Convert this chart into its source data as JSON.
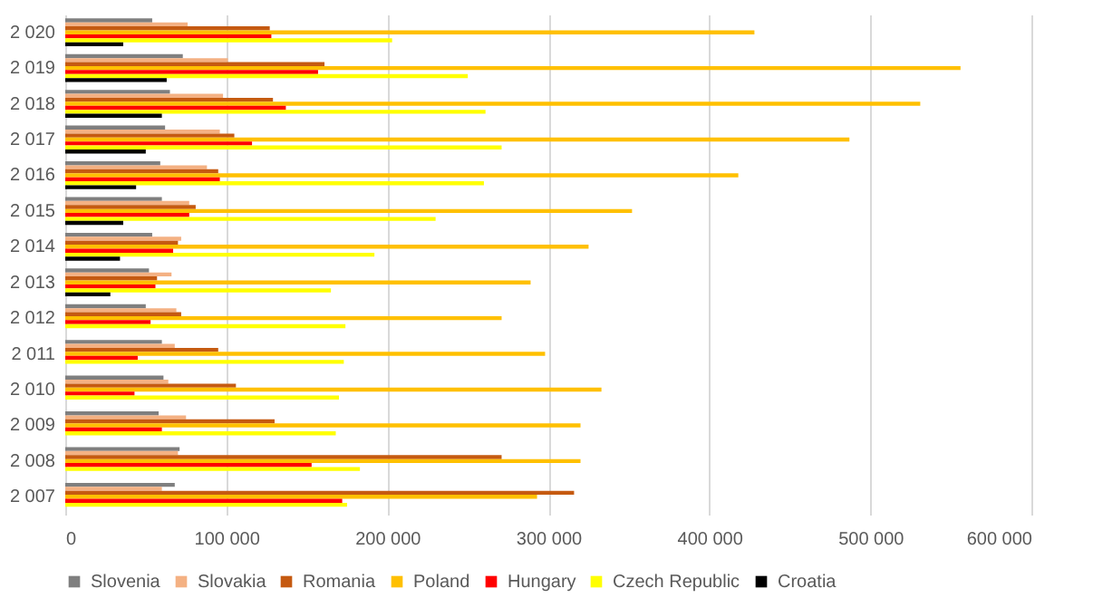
{
  "chart_data": {
    "type": "bar",
    "orientation": "horizontal",
    "categories": [
      "2 020",
      "2 019",
      "2 018",
      "2 017",
      "2 016",
      "2 015",
      "2 014",
      "2 013",
      "2 012",
      "2 011",
      "2 010",
      "2 009",
      "2 008",
      "2 007"
    ],
    "series": [
      {
        "name": "Slovenia",
        "color": "#7f7f7f",
        "values": [
          54000,
          73000,
          65000,
          62000,
          59000,
          60000,
          54000,
          52000,
          50000,
          60000,
          61000,
          58000,
          71000,
          68000
        ]
      },
      {
        "name": "Slovakia",
        "color": "#f4b183",
        "values": [
          76000,
          101000,
          98000,
          96000,
          88000,
          77000,
          72000,
          66000,
          69000,
          68000,
          64000,
          75000,
          70000,
          60000
        ]
      },
      {
        "name": "Romania",
        "color": "#c55a11",
        "values": [
          127000,
          161000,
          129000,
          105000,
          95000,
          81000,
          70000,
          57000,
          72000,
          95000,
          106000,
          130000,
          271000,
          316000
        ]
      },
      {
        "name": "Poland",
        "color": "#ffc000",
        "values": [
          428000,
          556000,
          531000,
          487000,
          418000,
          352000,
          325000,
          289000,
          271000,
          298000,
          333000,
          320000,
          320000,
          293000
        ]
      },
      {
        "name": "Hungary",
        "color": "#ff0000",
        "values": [
          128000,
          157000,
          137000,
          116000,
          96000,
          77000,
          67000,
          56000,
          53000,
          45000,
          43000,
          60000,
          153000,
          172000
        ]
      },
      {
        "name": "Czech Republic",
        "color": "#ffff00",
        "values": [
          203000,
          250000,
          261000,
          271000,
          260000,
          230000,
          192000,
          165000,
          174000,
          173000,
          170000,
          168000,
          183000,
          175000
        ]
      },
      {
        "name": "Croatia",
        "color": "#000000",
        "values": [
          36000,
          63000,
          60000,
          50000,
          44000,
          36000,
          34000,
          28000,
          null,
          null,
          null,
          null,
          null,
          null
        ]
      }
    ],
    "xlim": [
      0,
      600000
    ],
    "xticks": [
      0,
      {
        "value": 100000,
        "label": "100 000"
      },
      {
        "value": 200000,
        "label": "200 000"
      },
      {
        "value": 300000,
        "label": "300 000"
      },
      {
        "value": 400000,
        "label": "400 000"
      },
      {
        "value": 500000,
        "label": "500 000"
      },
      {
        "value": 600000,
        "label": "600 000"
      }
    ],
    "grid": "x",
    "legend": "bottom"
  }
}
